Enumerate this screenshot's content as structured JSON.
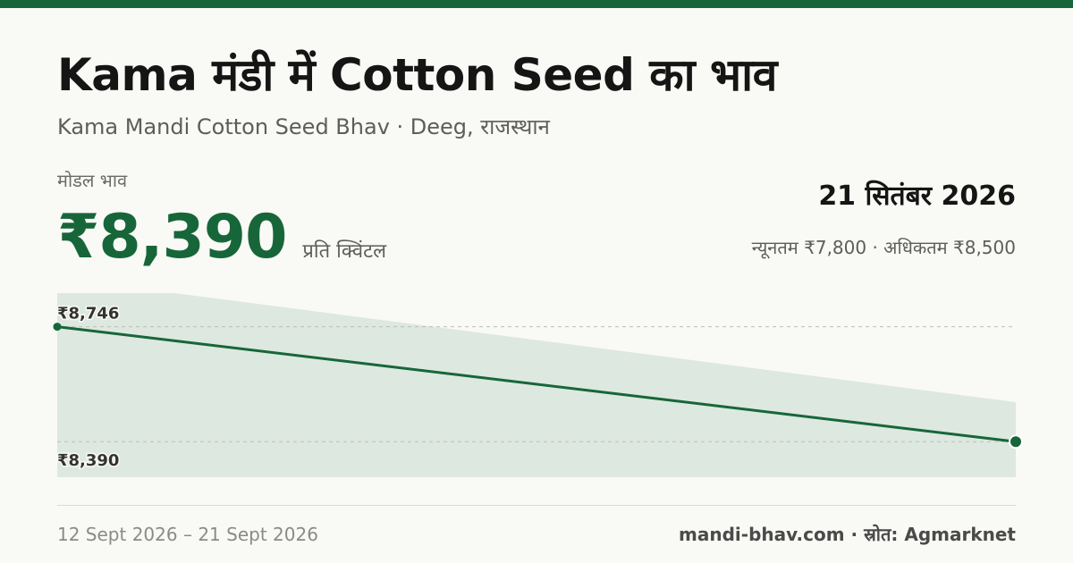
{
  "header": {
    "title": "Kama मंडी में Cotton Seed का भाव",
    "subtitle": "Kama Mandi Cotton Seed Bhav · Deeg, राजस्थान"
  },
  "price": {
    "label": "मोडल भाव",
    "value": "₹8,390",
    "unit": "प्रति क्विंटल"
  },
  "summary": {
    "date": "21 सितंबर 2026",
    "range": "न्यूनतम ₹7,800 · अधिकतम ₹8,500"
  },
  "footer": {
    "date_range": "12 Sept 2026 – 21 Sept 2026",
    "source": "mandi-bhav.com · स्रोत: Agmarknet"
  },
  "colors": {
    "accent": "#17663a",
    "band": "#dde8e0",
    "background": "#f9f9f5"
  },
  "chart_data": {
    "type": "line",
    "x": [
      "12 Sept 2026",
      "21 Sept 2026"
    ],
    "series": [
      {
        "values": [
          8746,
          8390
        ]
      }
    ],
    "point_labels": [
      "₹8,746",
      "₹8,390"
    ],
    "ylim": [
      8280,
      8850
    ],
    "grid": false
  }
}
